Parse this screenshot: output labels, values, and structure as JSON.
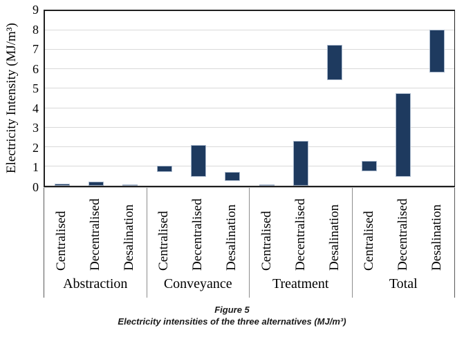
{
  "figure": {
    "caption_title": "Figure 5",
    "caption_text": "Electricity intensities of the three alternatives (MJ/m³)"
  },
  "chart_data": {
    "type": "bar",
    "subtype": "floating-range-bar",
    "title": "",
    "xlabel": "",
    "ylabel": "Electricity Intensity (MJ/m³)",
    "ylim": [
      0,
      9
    ],
    "yticks": [
      0,
      1,
      2,
      3,
      4,
      5,
      6,
      7,
      8,
      9
    ],
    "grid": "horizontal",
    "legend": "none",
    "colors": {
      "bar_fill": "#1e3a5f",
      "bar_border": "#a9b8cc",
      "gridline": "#d9d9d9",
      "frame": "#1f1f1f",
      "separator": "#8c8c8c"
    },
    "groups": [
      {
        "label": "Abstraction",
        "bars": [
          {
            "category": "Centralised",
            "low": 0,
            "high": 0.1
          },
          {
            "category": "Decentralised",
            "low": 0,
            "high": 0.22
          },
          {
            "category": "Desalination",
            "low": 0,
            "high": 0.08
          }
        ]
      },
      {
        "label": "Conveyance",
        "bars": [
          {
            "category": "Centralised",
            "low": 0.7,
            "high": 1.05
          },
          {
            "category": "Decentralised",
            "low": 0.45,
            "high": 2.1
          },
          {
            "category": "Desalination",
            "low": 0.25,
            "high": 0.73
          }
        ]
      },
      {
        "label": "Treatment",
        "bars": [
          {
            "category": "Centralised",
            "low": 0,
            "high": 0.04
          },
          {
            "category": "Decentralised",
            "low": 0,
            "high": 2.32
          },
          {
            "category": "Desalination",
            "low": 5.45,
            "high": 7.25
          }
        ]
      },
      {
        "label": "Total",
        "bars": [
          {
            "category": "Centralised",
            "low": 0.76,
            "high": 1.28
          },
          {
            "category": "Decentralised",
            "low": 0.45,
            "high": 4.75
          },
          {
            "category": "Desalination",
            "low": 5.85,
            "high": 8.05
          }
        ]
      }
    ]
  }
}
